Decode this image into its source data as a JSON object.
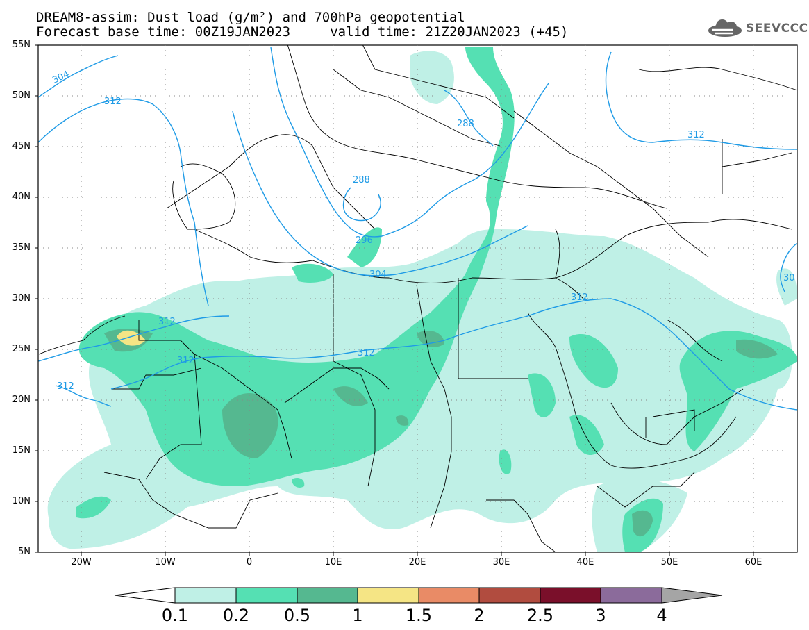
{
  "title": {
    "line1": "DREAM8-assim: Dust load (g/m²) and 700hPa geopotential",
    "line2": "Forecast base time: 00Z19JAN2023     valid time: 21Z20JAN2023 (+45)"
  },
  "logo": {
    "text": "SEEVCCC",
    "icon": "cloud-icon"
  },
  "map": {
    "lon_range": [
      -25,
      65
    ],
    "lat_range": [
      5,
      55
    ],
    "lat_ticks": [
      "55N",
      "50N",
      "45N",
      "40N",
      "35N",
      "30N",
      "25N",
      "20N",
      "15N",
      "10N",
      "5N"
    ],
    "lon_ticks": [
      "20W",
      "10W",
      "0",
      "10E",
      "20E",
      "30E",
      "40E",
      "50E",
      "60E"
    ],
    "contour_labels": [
      "304",
      "312",
      "288",
      "288",
      "296",
      "304",
      "312",
      "312",
      "312",
      "312",
      "312",
      "30"
    ]
  },
  "colorbar": {
    "labels": [
      "0.1",
      "0.2",
      "0.5",
      "1",
      "1.5",
      "2",
      "2.5",
      "3",
      "4"
    ],
    "colors": [
      "#ffffff",
      "#bff0e6",
      "#55e0b3",
      "#55b890",
      "#f5e585",
      "#e98b66",
      "#b14c3f",
      "#7a0f2a",
      "#8b6b9b",
      "#a5a5a5"
    ]
  },
  "colors": {
    "level1": "#bff0e6",
    "level2": "#55e0b3",
    "level3": "#55b890",
    "level4": "#f5e585",
    "contour": "#1f9be6",
    "border": "#000000"
  }
}
